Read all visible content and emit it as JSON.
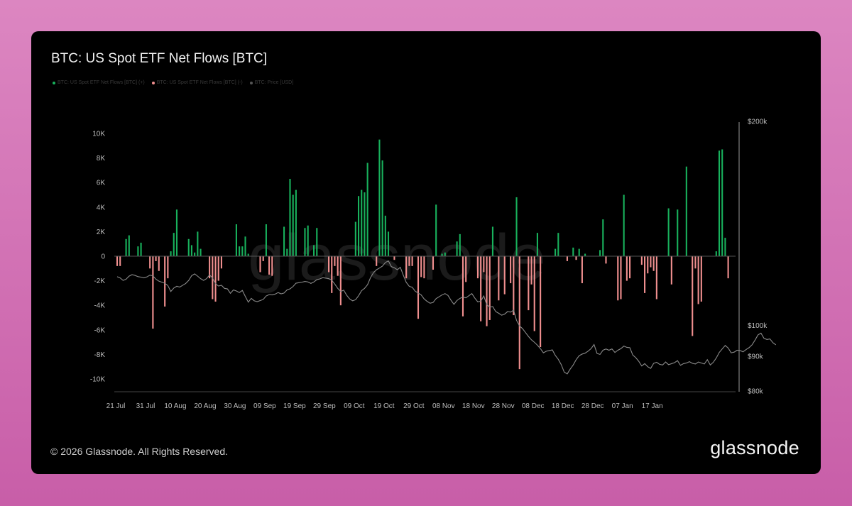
{
  "title": "BTC: US Spot ETF Net Flows [BTC]",
  "legend": [
    {
      "label": "BTC: US Spot ETF Net Flows [BTC] (+)",
      "color": "#18b15c"
    },
    {
      "label": "BTC: US Spot ETF Net Flows [BTC] (-)",
      "color": "#f08f8f"
    },
    {
      "label": "BTC: Price [USD]",
      "color": "#8a8a8a"
    }
  ],
  "watermark": "glassnode",
  "footer": "© 2026 Glassnode. All Rights Reserved.",
  "brand": "glassnode",
  "colors": {
    "positive": "#18b15c",
    "negative": "#f08f8f",
    "price": "#8a8a8a",
    "axis": "#bdbdbd"
  },
  "chart_data": {
    "type": "bar",
    "x_ticks": [
      "21 Jul",
      "31 Jul",
      "10 Aug",
      "20 Aug",
      "30 Aug",
      "09 Sep",
      "19 Sep",
      "29 Sep",
      "09 Oct",
      "19 Oct",
      "29 Oct",
      "08 Nov",
      "18 Nov",
      "28 Nov",
      "08 Dec",
      "18 Dec",
      "28 Dec",
      "07 Jan",
      "17 Jan"
    ],
    "y_left_ticks": [
      "10K",
      "8K",
      "6K",
      "4K",
      "2K",
      "0",
      "-2K",
      "-4K",
      "-6K",
      "-8K",
      "-10K"
    ],
    "y_left_range": [
      -10000,
      10000
    ],
    "y_right_ticks": [
      {
        "label": "$200k",
        "value": 200000
      },
      {
        "label": "$100k",
        "value": 100000
      },
      {
        "label": "$90k",
        "value": 90000
      },
      {
        "label": "$80k",
        "value": 80000
      }
    ],
    "y_right_scale": "log",
    "y_right_range": [
      80000,
      200000
    ],
    "series": [
      {
        "name": "BTC: US Spot ETF Net Flows [BTC]",
        "start_date": "2025-07-21",
        "values": [
          -800,
          -800,
          0,
          1400,
          1700,
          0,
          0,
          800,
          1100,
          0,
          0,
          -1000,
          -5900,
          -400,
          -1200,
          0,
          -4100,
          -1800,
          400,
          1900,
          3800,
          0,
          0,
          0,
          1400,
          900,
          300,
          2000,
          600,
          0,
          0,
          -1800,
          -3500,
          -3700,
          -2000,
          -1000,
          0,
          0,
          0,
          0,
          2600,
          800,
          800,
          1600,
          200,
          0,
          0,
          0,
          -1300,
          -400,
          2600,
          -1500,
          -1600,
          0,
          0,
          0,
          2400,
          600,
          6300,
          5000,
          5400,
          0,
          0,
          2300,
          2500,
          0,
          900,
          2300,
          0,
          0,
          0,
          -1300,
          -3000,
          -800,
          -1600,
          -4000,
          0,
          0,
          0,
          0,
          2800,
          4900,
          5400,
          5200,
          7600,
          0,
          0,
          -800,
          9500,
          7800,
          3300,
          2000,
          0,
          -300,
          0,
          0,
          0,
          -1800,
          -800,
          -800,
          0,
          -5100,
          -1700,
          -1800,
          0,
          0,
          -1100,
          4200,
          0,
          200,
          300,
          0,
          0,
          0,
          1200,
          1800,
          -4900,
          -2100,
          0,
          0,
          0,
          -1800,
          -5300,
          -1300,
          -5700,
          -5200,
          2400,
          0,
          -3600,
          0,
          -3100,
          0,
          -2200,
          -4800,
          4800,
          -9200,
          0,
          0,
          -4400,
          -2300,
          -6100,
          1900,
          -7400,
          0,
          0,
          0,
          0,
          600,
          1900,
          0,
          0,
          -400,
          0,
          700,
          -300,
          600,
          -2200,
          200,
          0,
          0,
          0,
          0,
          500,
          3000,
          -600,
          0,
          0,
          0,
          -3600,
          -3500,
          5000,
          -2000,
          -1800,
          0,
          0,
          0,
          -700,
          -3000,
          -1400,
          -900,
          -1200,
          -3500,
          0,
          0,
          0,
          3900,
          -2300,
          0,
          3800,
          0,
          0,
          7300,
          0,
          -6500,
          -1000,
          -3900,
          -3700,
          0,
          0,
          0,
          0,
          400,
          8600,
          8700,
          1500,
          -1800,
          0,
          0
        ]
      },
      {
        "name": "BTC: Price [USD]",
        "start_date": "2025-07-21",
        "scale": "log",
        "values": [
          118000,
          117500,
          116500,
          117000,
          118200,
          118800,
          118500,
          118000,
          117800,
          117500,
          117900,
          118600,
          118300,
          117000,
          116200,
          115800,
          115400,
          114500,
          112200,
          113500,
          114200,
          113900,
          114600,
          115300,
          116500,
          118400,
          119100,
          118200,
          117200,
          116500,
          117200,
          118700,
          117500,
          115200,
          114300,
          114600,
          113400,
          113200,
          111500,
          112800,
          112400,
          111800,
          112600,
          110300,
          108200,
          109600,
          108700,
          108400,
          108800,
          109200,
          110500,
          111000,
          110900,
          111200,
          111800,
          111300,
          111600,
          112800,
          113200,
          114100,
          115400,
          115600,
          115800,
          116100,
          115900,
          115300,
          115900,
          116800,
          117100,
          117600,
          117400,
          117200,
          116600,
          115100,
          113400,
          112200,
          112700,
          110800,
          109400,
          108700,
          109100,
          110600,
          112500,
          113400,
          114800,
          117600,
          119600,
          120800,
          121500,
          122300,
          123800,
          124500,
          122100,
          121600,
          120800,
          121800,
          118600,
          115700,
          114200,
          113800,
          112300,
          111600,
          110900,
          109400,
          108500,
          107800,
          108100,
          109500,
          110200,
          110900,
          111400,
          110700,
          108900,
          107400,
          108800,
          109600,
          110100,
          109800,
          110600,
          111400,
          109700,
          108300,
          108600,
          110500,
          107300,
          106400,
          106600,
          104800,
          104200,
          103500,
          103900,
          104800,
          104600,
          105300,
          101700,
          99800,
          98900,
          97600,
          96300,
          95200,
          94400,
          93500,
          92400,
          91100,
          91600,
          91800,
          92000,
          90300,
          89100,
          87500,
          85300,
          84800,
          86200,
          87400,
          89000,
          90200,
          90700,
          91000,
          91600,
          92400,
          93700,
          90900,
          90600,
          91900,
          92300,
          91900,
          92300,
          91200,
          91900,
          92400,
          93200,
          92800,
          92700,
          90400,
          89600,
          88500,
          87100,
          87800,
          86900,
          86400,
          87900,
          88200,
          87600,
          87400,
          88300,
          87500,
          87800,
          88100,
          88700,
          87300,
          87800,
          88000,
          88400,
          87900,
          87700,
          88300,
          88000,
          87700,
          89000,
          87400,
          88200,
          89500,
          91200,
          92300,
          93400,
          92600,
          91100,
          91300,
          91900,
          91800,
          91400,
          92100,
          92700,
          93600,
          95100,
          96800,
          97400,
          95700,
          95300,
          95500,
          94300,
          93600
        ]
      }
    ]
  }
}
